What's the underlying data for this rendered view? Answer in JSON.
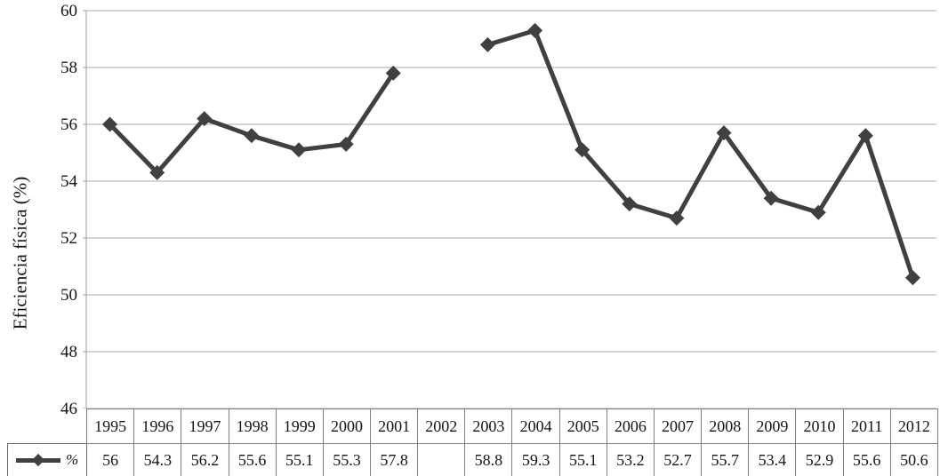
{
  "chart_data": {
    "type": "line",
    "title": "",
    "xlabel": "",
    "ylabel": "Eficiencia física (%)",
    "categories": [
      "1995",
      "1996",
      "1997",
      "1998",
      "1999",
      "2000",
      "2001",
      "2002",
      "2003",
      "2004",
      "2005",
      "2006",
      "2007",
      "2008",
      "2009",
      "2010",
      "2011",
      "2012"
    ],
    "series": [
      {
        "name": "%",
        "values": [
          56,
          54.3,
          56.2,
          55.6,
          55.1,
          55.3,
          57.8,
          null,
          58.8,
          59.3,
          55.1,
          53.2,
          52.7,
          55.7,
          53.4,
          52.9,
          55.6,
          50.6
        ]
      }
    ],
    "ylim": [
      46,
      60
    ],
    "yticks": [
      46,
      48,
      50,
      52,
      54,
      56,
      58,
      60
    ],
    "grid": true,
    "gap_note": "no data point for 2002, line is broken there",
    "legend_position": "table-row-header",
    "marker": "diamond",
    "colors": {
      "line": "#404040",
      "marker": "#404040",
      "gridline": "#a8a8a8",
      "axis": "#9e9e9e",
      "table_border": "#7f7f7f",
      "text": "#141414"
    }
  },
  "table": {
    "legend_label": "%",
    "display_values": [
      "56",
      "54.3",
      "56.2",
      "55.6",
      "55.1",
      "55.3",
      "57.8",
      "",
      "58.8",
      "59.3",
      "55.1",
      "53.2",
      "52.7",
      "55.7",
      "53.4",
      "52.9",
      "55.6",
      "50.6"
    ]
  }
}
